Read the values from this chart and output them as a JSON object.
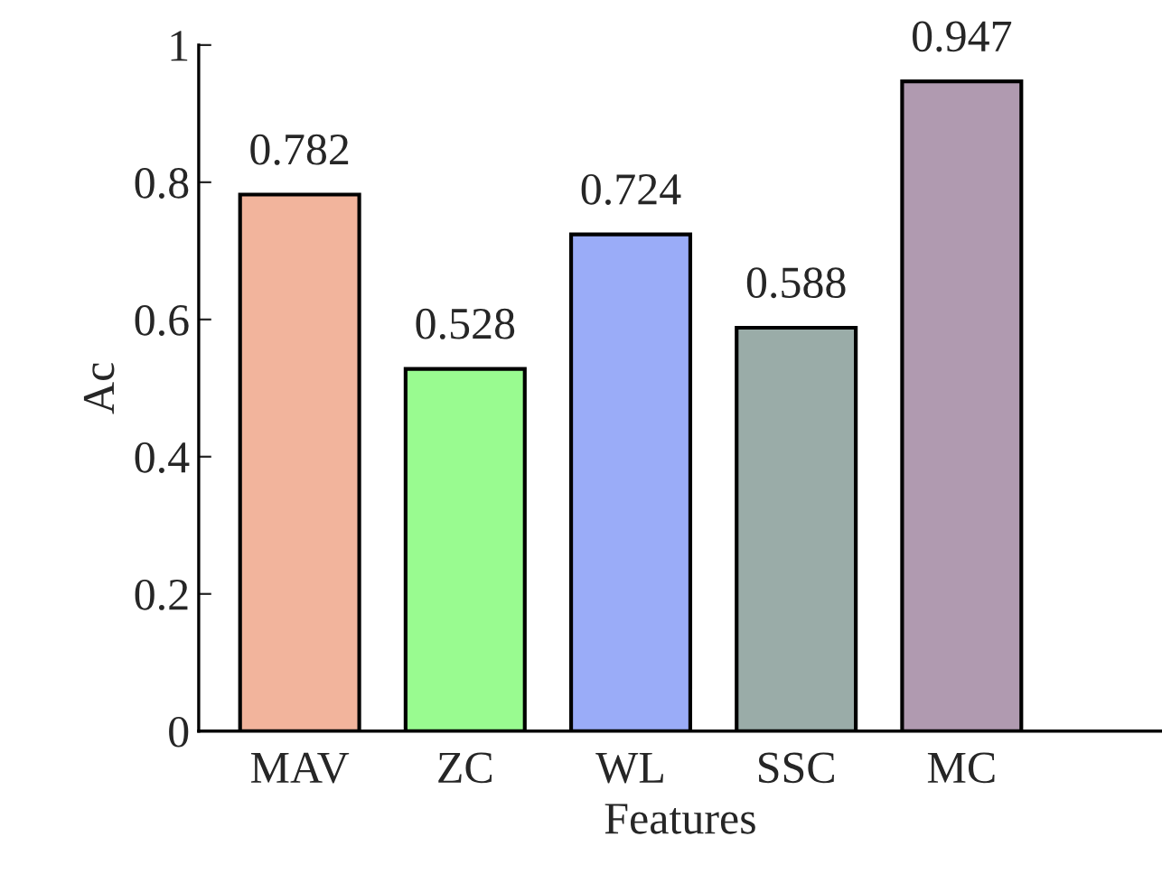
{
  "chart_data": {
    "type": "bar",
    "xlabel": "Features",
    "ylabel": "Ac",
    "categories": [
      "MAV",
      "ZC",
      "WL",
      "SSC",
      "MC"
    ],
    "values": [
      0.782,
      0.528,
      0.724,
      0.588,
      0.947
    ],
    "colors": [
      "#f2b49c",
      "#99fb90",
      "#9aacf8",
      "#9aaca8",
      "#b09ab0"
    ],
    "ylim": [
      0,
      1
    ],
    "yticks": [
      0,
      0.2,
      0.4,
      0.6,
      0.8,
      1
    ],
    "grid": false,
    "data_labels": true
  }
}
